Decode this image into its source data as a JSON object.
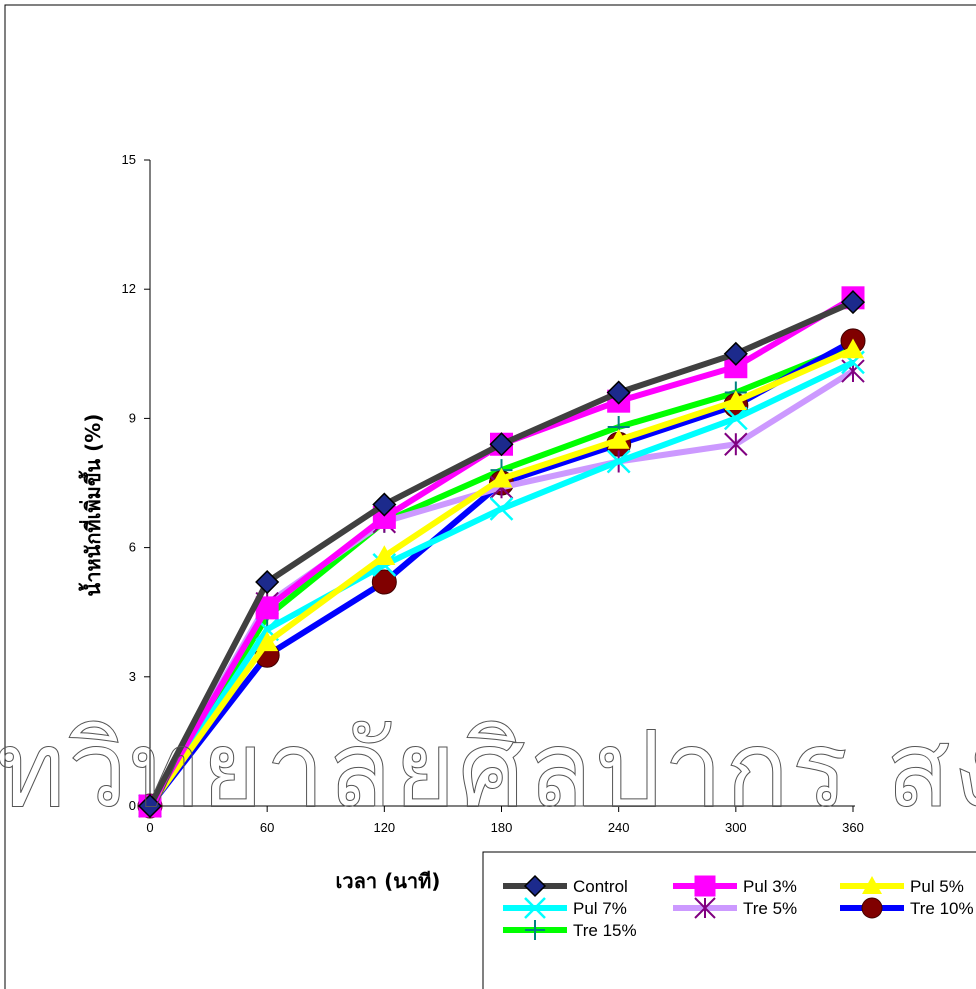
{
  "watermark": "ทวิทยาลัยศิลปากร สงวนลิขสิ",
  "chart_data": {
    "type": "line",
    "xlabel": "เวลา (นาที)",
    "ylabel": "น้ำหนักที่เพิ่มขึ้น (%)",
    "x": [
      0,
      60,
      120,
      180,
      240,
      300,
      360
    ],
    "xticks": [
      "0",
      "60",
      "120",
      "180",
      "240",
      "300",
      "360"
    ],
    "yticks": [
      "0",
      "3",
      "6",
      "9",
      "12",
      "15"
    ],
    "xlim": [
      0,
      360
    ],
    "ylim": [
      0,
      15
    ],
    "grid": false,
    "legend_position": "bottom-right",
    "series": [
      {
        "name": "Control",
        "color": "#404040",
        "marker": "diamond",
        "marker_fill": "#1c2a8c",
        "values": [
          0,
          5.2,
          7.0,
          8.4,
          9.6,
          10.5,
          11.7
        ]
      },
      {
        "name": "Pul 3%",
        "color": "#ff00ff",
        "marker": "square",
        "marker_fill": "#ff00ff",
        "values": [
          0,
          4.6,
          6.7,
          8.4,
          9.4,
          10.2,
          11.8
        ]
      },
      {
        "name": "Pul 5%",
        "color": "#ffff00",
        "marker": "triangle",
        "marker_fill": "#ffff00",
        "values": [
          0,
          3.8,
          5.8,
          7.6,
          8.5,
          9.4,
          10.6
        ]
      },
      {
        "name": "Pul 7%",
        "color": "#00ffff",
        "marker": "x",
        "marker_fill": "#00ffff",
        "values": [
          0,
          4.1,
          5.6,
          6.9,
          8.0,
          9.0,
          10.3
        ]
      },
      {
        "name": "Tre 5%",
        "color": "#cc99ff",
        "marker": "asterisk",
        "marker_fill": "#800080",
        "values": [
          0,
          4.7,
          6.6,
          7.4,
          8.0,
          8.4,
          10.1
        ]
      },
      {
        "name": "Tre 10%",
        "color": "#0000ff",
        "marker": "circle",
        "marker_fill": "#800000",
        "values": [
          0,
          3.5,
          5.2,
          7.5,
          8.4,
          9.3,
          10.8
        ]
      },
      {
        "name": "Tre 15%",
        "color": "#00ff00",
        "marker": "plus",
        "marker_fill": "#008080",
        "values": [
          0,
          4.4,
          6.6,
          7.8,
          8.8,
          9.6,
          10.7
        ]
      }
    ]
  }
}
